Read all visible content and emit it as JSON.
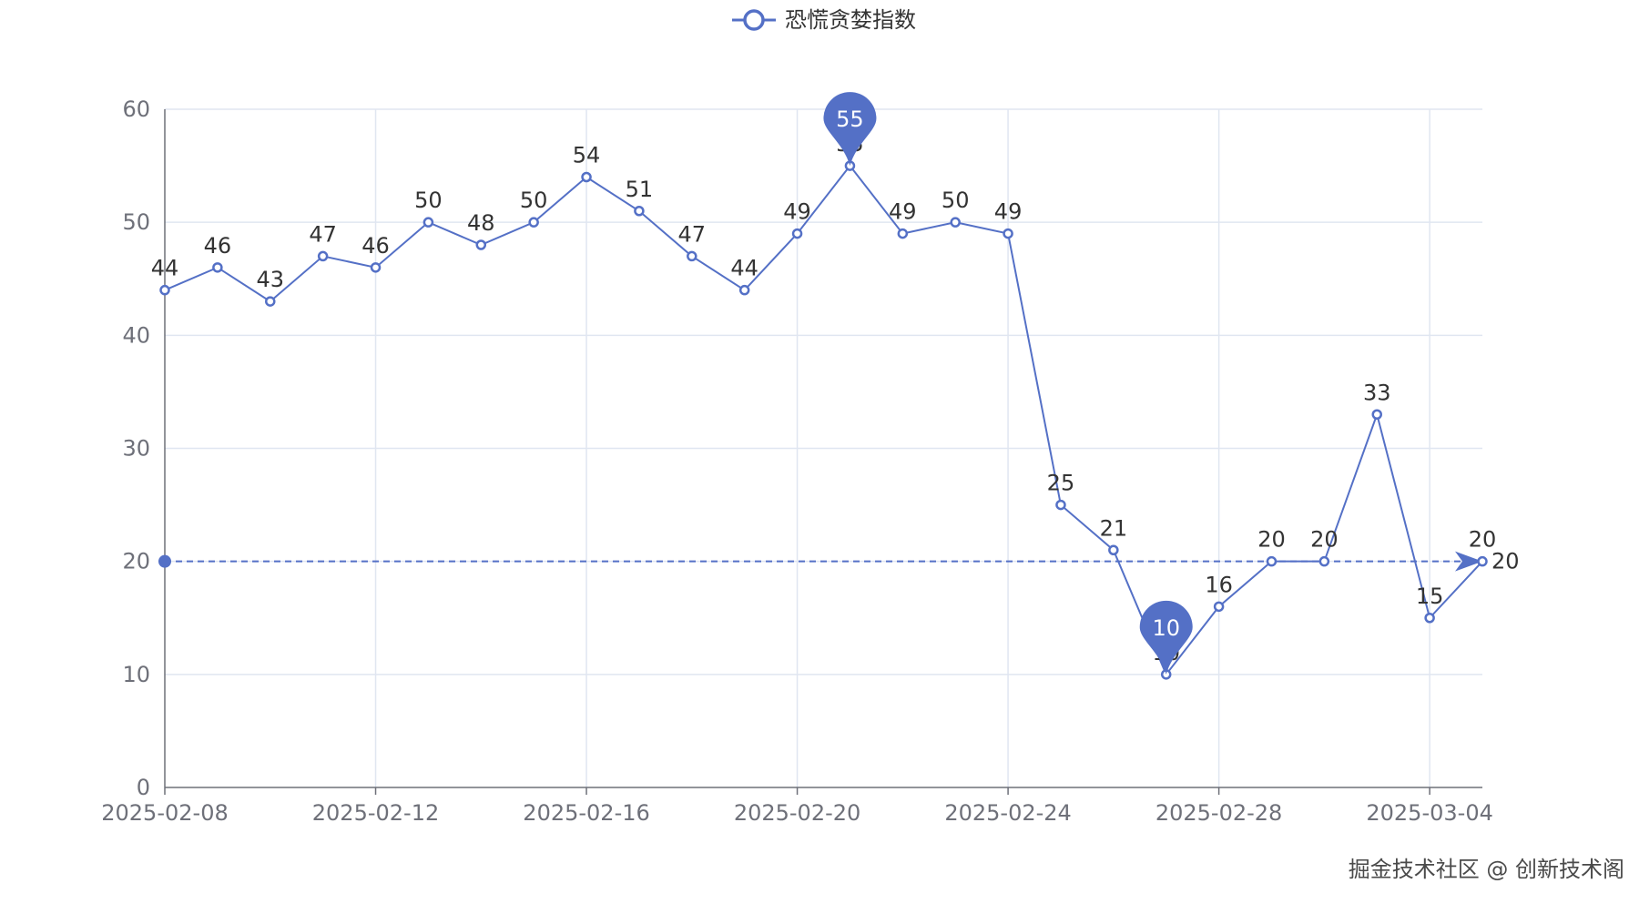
{
  "chart_data": {
    "type": "line",
    "legend": {
      "position": "top-center",
      "entries": [
        "恐慌贪婪指数"
      ]
    },
    "x": [
      "2025-02-08",
      "2025-02-09",
      "2025-02-10",
      "2025-02-11",
      "2025-02-12",
      "2025-02-13",
      "2025-02-14",
      "2025-02-15",
      "2025-02-16",
      "2025-02-17",
      "2025-02-18",
      "2025-02-19",
      "2025-02-20",
      "2025-02-21",
      "2025-02-22",
      "2025-02-23",
      "2025-02-24",
      "2025-02-25",
      "2025-02-26",
      "2025-02-27",
      "2025-02-28",
      "2025-03-01",
      "2025-03-02",
      "2025-03-03",
      "2025-03-04",
      "2025-03-05"
    ],
    "x_tick_labels": [
      "2025-02-08",
      "2025-02-12",
      "2025-02-16",
      "2025-02-20",
      "2025-02-24",
      "2025-02-28",
      "2025-03-04"
    ],
    "series": [
      {
        "name": "恐慌贪婪指数",
        "color": "#5470c6",
        "values": [
          44,
          46,
          43,
          47,
          46,
          50,
          48,
          50,
          54,
          51,
          47,
          44,
          49,
          55,
          49,
          50,
          49,
          25,
          21,
          10,
          16,
          20,
          20,
          33,
          15,
          20
        ]
      }
    ],
    "mark_points": [
      {
        "type": "max",
        "x": "2025-02-21",
        "value": 55,
        "label": "55"
      },
      {
        "type": "min",
        "x": "2025-02-27",
        "value": 10,
        "label": "10"
      }
    ],
    "mark_line": {
      "value": 20,
      "label": "20",
      "style": "dashed"
    },
    "y_ticks": [
      "0",
      "10",
      "20",
      "30",
      "40",
      "50",
      "60"
    ],
    "ylim": [
      0,
      60
    ],
    "grid": true,
    "title": "",
    "xlabel": "",
    "ylabel": ""
  },
  "watermark": "掘金技术社区 @ 创新技术阁"
}
